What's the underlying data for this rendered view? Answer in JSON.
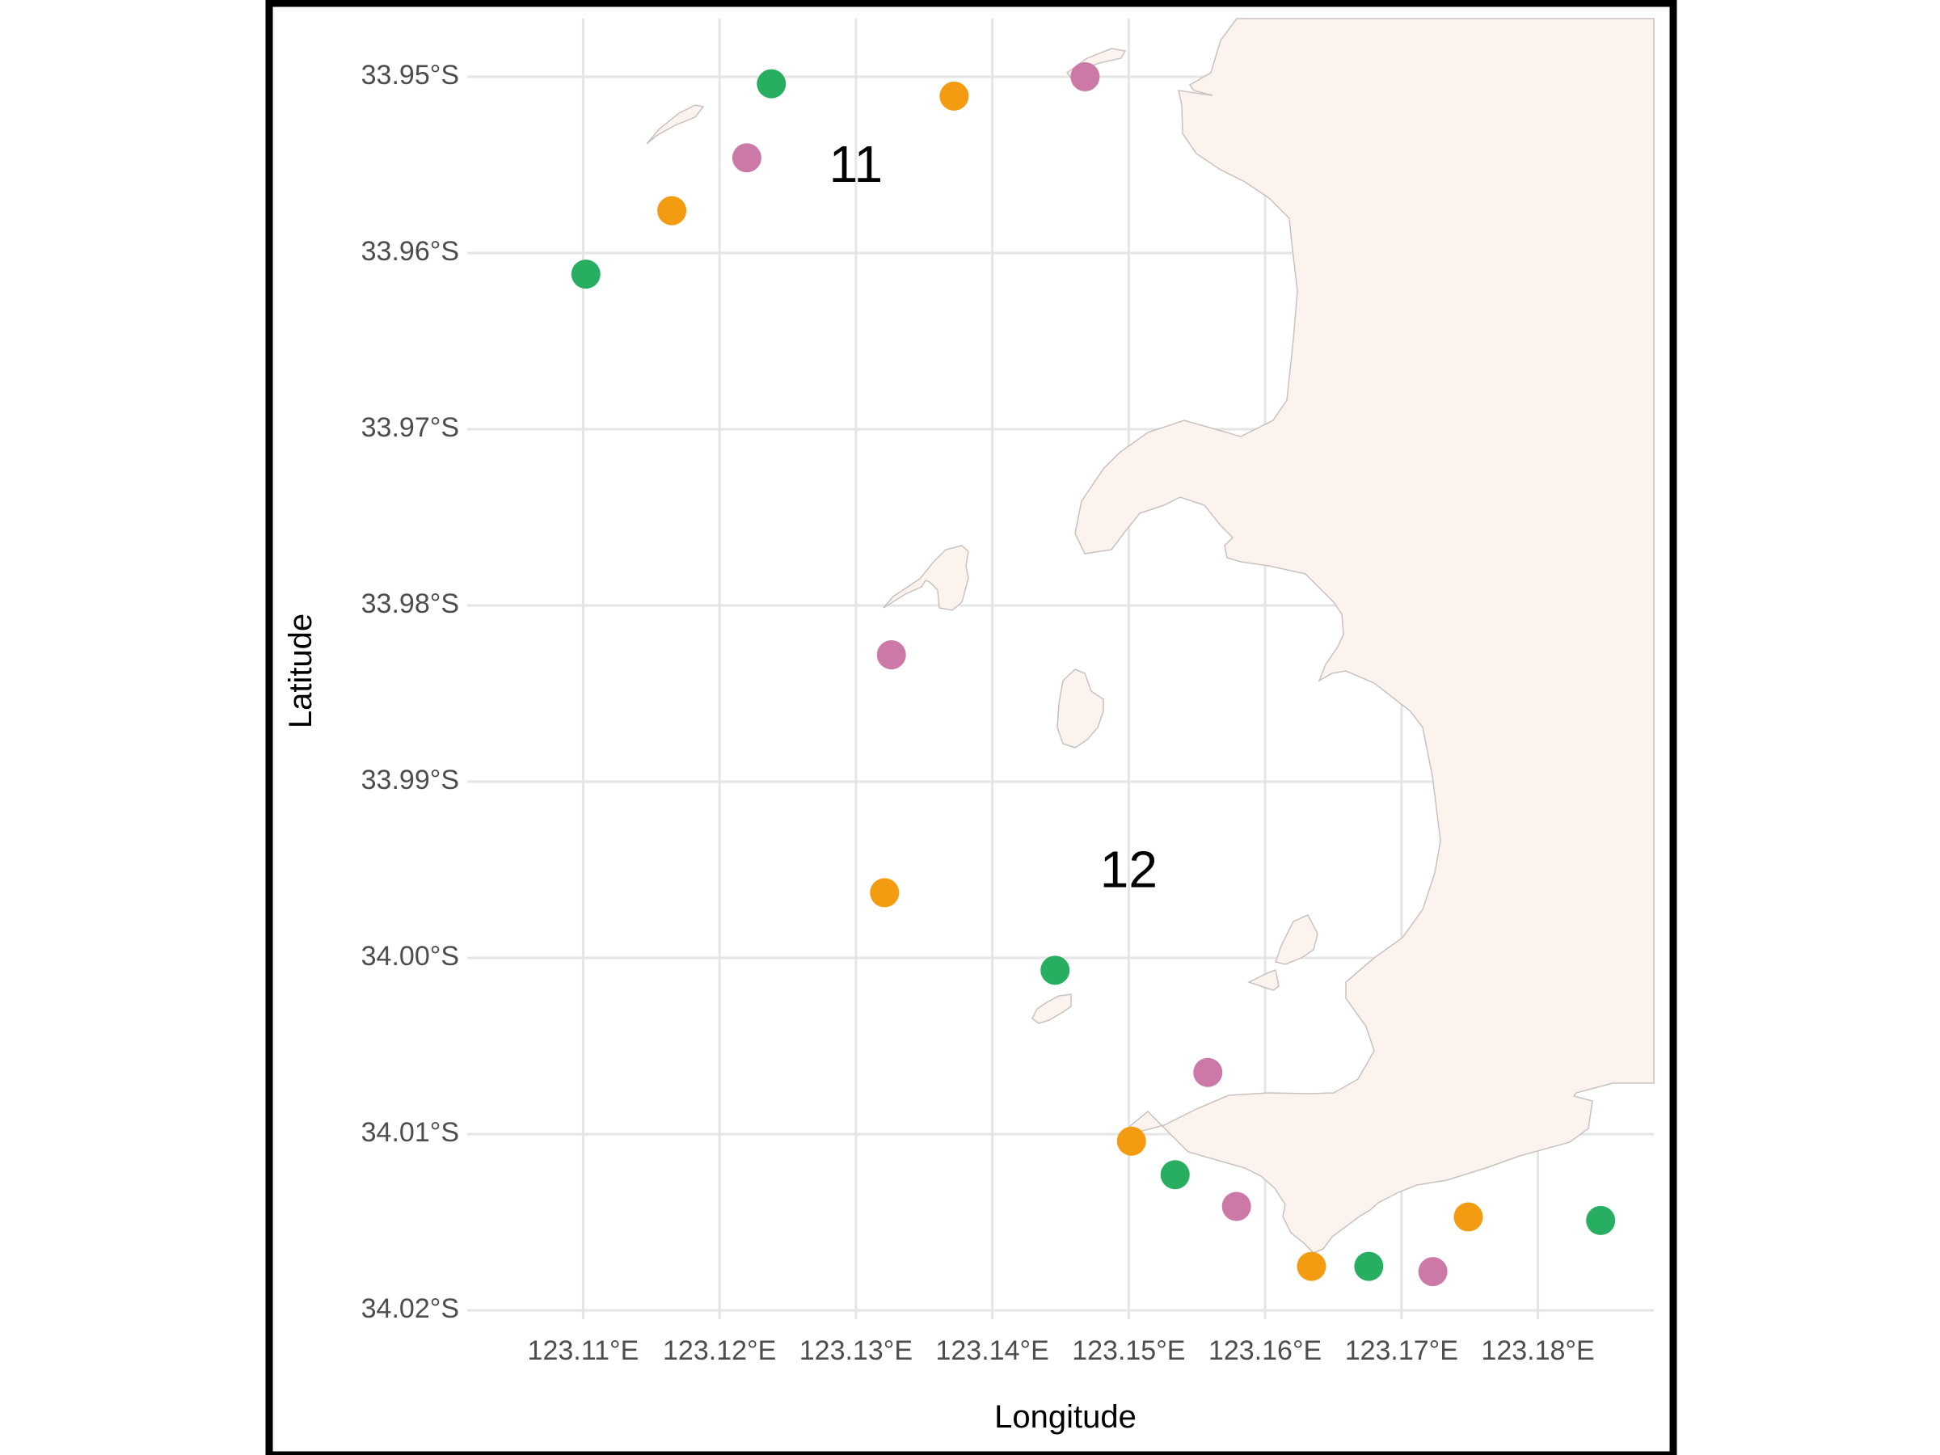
{
  "chart_data": {
    "type": "scatter",
    "x_axis": {
      "label": "Longitude",
      "range": [
        123.1015,
        123.1885
      ],
      "ticks": [
        123.11,
        123.12,
        123.13,
        123.14,
        123.15,
        123.16,
        123.17,
        123.18
      ],
      "tick_labels": [
        "123.11°E",
        "123.12°E",
        "123.13°E",
        "123.14°E",
        "123.15°E",
        "123.16°E",
        "123.17°E",
        "123.18°E"
      ]
    },
    "y_axis": {
      "label": "Latitude",
      "range": [
        -34.0205,
        -33.9467
      ],
      "ticks": [
        -33.95,
        -33.96,
        -33.97,
        -33.98,
        -33.99,
        -34.0,
        -34.01,
        -34.02
      ],
      "tick_labels": [
        "33.95°S",
        "33.96°S",
        "33.97°S",
        "33.98°S",
        "33.99°S",
        "34.00°S",
        "34.01°S",
        "34.02°S"
      ]
    },
    "grid": true,
    "legend": "none",
    "colors": {
      "green": "#27AE60",
      "orange": "#F39C12",
      "pink": "#CC79A7",
      "land": "#FDF3EE",
      "land_outline": "#c8c2be",
      "grid": "#e5e5e5"
    },
    "region_labels": [
      {
        "text": "11",
        "lon": 123.13,
        "lat": -33.9552
      },
      {
        "text": "12",
        "lon": 123.15,
        "lat": -33.9952
      }
    ],
    "points": [
      {
        "lon": 123.1238,
        "lat": -33.9504,
        "color": "green"
      },
      {
        "lon": 123.1372,
        "lat": -33.9511,
        "color": "orange"
      },
      {
        "lon": 123.1468,
        "lat": -33.95,
        "color": "pink"
      },
      {
        "lon": 123.122,
        "lat": -33.9546,
        "color": "pink"
      },
      {
        "lon": 123.1165,
        "lat": -33.9576,
        "color": "orange"
      },
      {
        "lon": 123.1102,
        "lat": -33.9612,
        "color": "green"
      },
      {
        "lon": 123.1326,
        "lat": -33.9828,
        "color": "pink"
      },
      {
        "lon": 123.1321,
        "lat": -33.9963,
        "color": "orange"
      },
      {
        "lon": 123.1446,
        "lat": -34.0007,
        "color": "green"
      },
      {
        "lon": 123.1558,
        "lat": -34.0065,
        "color": "pink"
      },
      {
        "lon": 123.1502,
        "lat": -34.0104,
        "color": "orange"
      },
      {
        "lon": 123.1534,
        "lat": -34.0123,
        "color": "green"
      },
      {
        "lon": 123.1579,
        "lat": -34.0141,
        "color": "pink"
      },
      {
        "lon": 123.1749,
        "lat": -34.0147,
        "color": "orange"
      },
      {
        "lon": 123.1846,
        "lat": -34.0149,
        "color": "green"
      },
      {
        "lon": 123.1634,
        "lat": -34.0175,
        "color": "orange"
      },
      {
        "lon": 123.1676,
        "lat": -34.0175,
        "color": "green"
      },
      {
        "lon": 123.1723,
        "lat": -34.0178,
        "color": "pink"
      }
    ]
  }
}
